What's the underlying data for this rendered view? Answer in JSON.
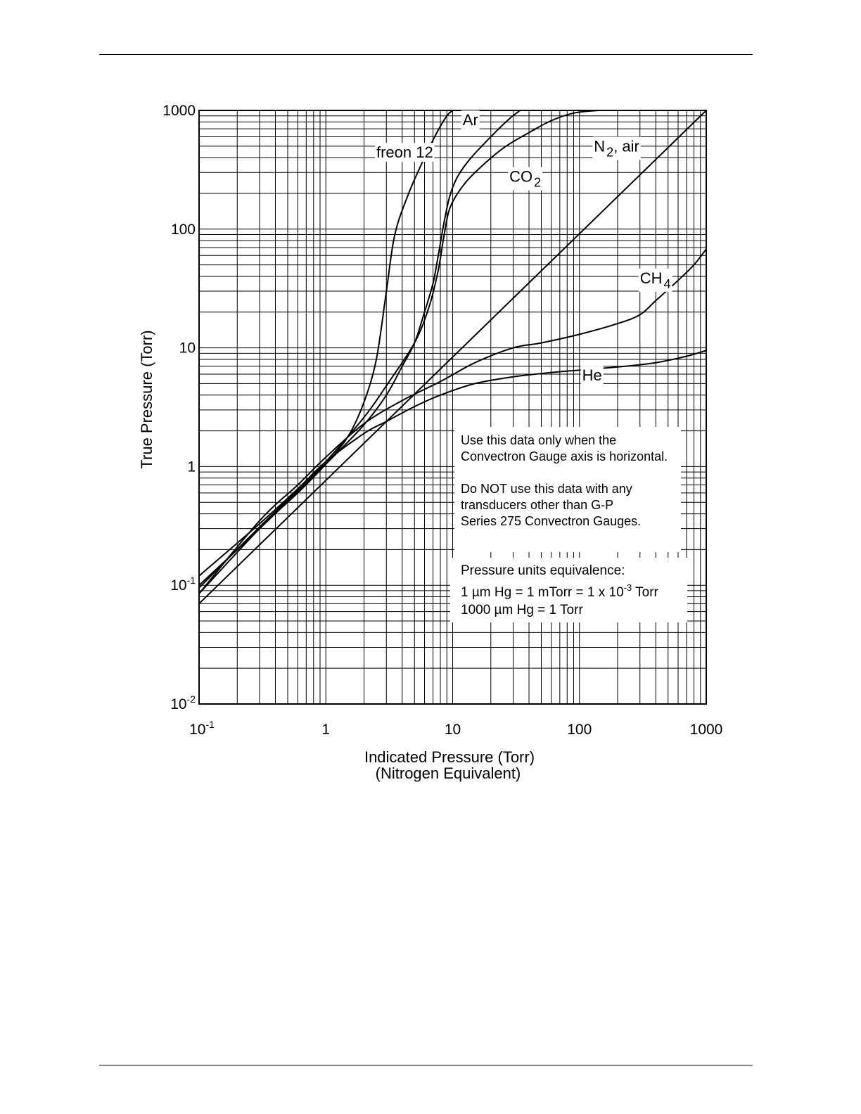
{
  "chart_data": {
    "type": "line",
    "x_scale": "log",
    "y_scale": "log",
    "xlim": [
      0.1,
      1000
    ],
    "ylim": [
      0.01,
      1000
    ],
    "grid": true,
    "xlabel": "Indicated Pressure (Torr)",
    "xlabel_line2": "(Nitrogen Equivalent)",
    "ylabel": "True Pressure (Torr)",
    "x_ticks": [
      {
        "value": 0.1,
        "base": "10",
        "exp": "-1"
      },
      {
        "value": 1,
        "base": "1",
        "exp": ""
      },
      {
        "value": 10,
        "base": "10",
        "exp": ""
      },
      {
        "value": 100,
        "base": "100",
        "exp": ""
      },
      {
        "value": 1000,
        "base": "1000",
        "exp": ""
      }
    ],
    "y_ticks": [
      {
        "value": 0.01,
        "base": "10",
        "exp": "-2"
      },
      {
        "value": 0.1,
        "base": "10",
        "exp": "-1"
      },
      {
        "value": 1,
        "base": "1",
        "exp": ""
      },
      {
        "value": 10,
        "base": "10",
        "exp": ""
      },
      {
        "value": 100,
        "base": "100",
        "exp": ""
      },
      {
        "value": 1000,
        "base": "1000",
        "exp": ""
      }
    ],
    "series": [
      {
        "key": "freon12",
        "label": {
          "base": "freon 12",
          "sub": "",
          "suffix": "",
          "at": [
            2.5,
            400
          ]
        },
        "x": [
          0.1,
          0.3,
          0.6,
          1,
          1.5,
          2,
          2.5,
          3,
          3.5,
          4.5,
          6,
          7.5,
          9,
          10
        ],
        "y": [
          0.085,
          0.3,
          0.6,
          1.05,
          1.8,
          3.5,
          8,
          30,
          90,
          200,
          400,
          650,
          900,
          1000
        ]
      },
      {
        "key": "ar",
        "label": {
          "base": "Ar",
          "sub": "",
          "suffix": "",
          "at": [
            12,
            750
          ]
        },
        "x": [
          0.1,
          0.3,
          0.6,
          1,
          2,
          3,
          4,
          5,
          6,
          7,
          7.7,
          8.5,
          9.5,
          11,
          14,
          20,
          28,
          34
        ],
        "y": [
          0.095,
          0.31,
          0.63,
          1.05,
          2.25,
          4,
          7,
          11,
          20,
          35,
          60,
          110,
          190,
          280,
          400,
          600,
          850,
          1000
        ]
      },
      {
        "key": "co2",
        "label": {
          "base": "CO",
          "sub": "2",
          "suffix": "",
          "at": [
            28,
            250
          ]
        },
        "x": [
          0.1,
          0.3,
          0.6,
          1,
          2,
          3,
          5,
          6.5,
          7.7,
          8.5,
          9.5,
          12,
          16,
          25,
          40,
          60,
          90,
          140
        ],
        "y": [
          0.1,
          0.3,
          0.62,
          1.1,
          2.6,
          4.8,
          11,
          22,
          45,
          85,
          150,
          230,
          320,
          480,
          650,
          820,
          950,
          1000
        ]
      },
      {
        "key": "n2air",
        "label": {
          "base": "N",
          "sub": "2",
          "suffix": ", air",
          "at": [
            130,
            450
          ]
        },
        "x": [
          0.1,
          1000
        ],
        "y": [
          0.07,
          1000
        ]
      },
      {
        "key": "ch4",
        "label": {
          "base": "CH",
          "sub": "4",
          "suffix": "",
          "at": [
            300,
            35
          ]
        },
        "x": [
          0.1,
          0.3,
          0.6,
          1,
          2,
          4,
          8,
          15,
          30,
          50,
          100,
          200,
          300,
          400,
          600,
          800,
          1000
        ],
        "y": [
          0.085,
          0.35,
          0.7,
          1.2,
          2.3,
          3.6,
          5.2,
          7.5,
          10,
          11,
          13,
          16,
          19,
          25,
          37,
          50,
          68
        ]
      },
      {
        "key": "he",
        "label": {
          "base": "He",
          "sub": "",
          "suffix": "",
          "at": [
            105,
            5.3
          ]
        },
        "x": [
          0.1,
          0.3,
          0.6,
          1,
          2,
          3,
          5,
          8,
          15,
          30,
          60,
          100,
          200,
          400,
          700,
          1000
        ],
        "y": [
          0.12,
          0.33,
          0.65,
          1.1,
          1.9,
          2.4,
          3.2,
          4,
          5,
          5.7,
          6.2,
          6.5,
          6.9,
          7.5,
          8.5,
          9.5
        ]
      }
    ],
    "annotations": {
      "warning": [
        "Use this data only when the",
        "Convectron Gauge axis is horizontal.",
        "",
        "Do NOT use this data with any",
        "transducers other than G-P",
        "Series 275 Convectron Gauges."
      ],
      "units": {
        "heading": "Pressure units equivalence:",
        "line1_prefix": "1 µm Hg = 1 mTorr = 1 x 10",
        "line1_exp": "-3",
        "line1_suffix": " Torr",
        "line2": "1000 µm Hg = 1 Torr"
      }
    }
  }
}
